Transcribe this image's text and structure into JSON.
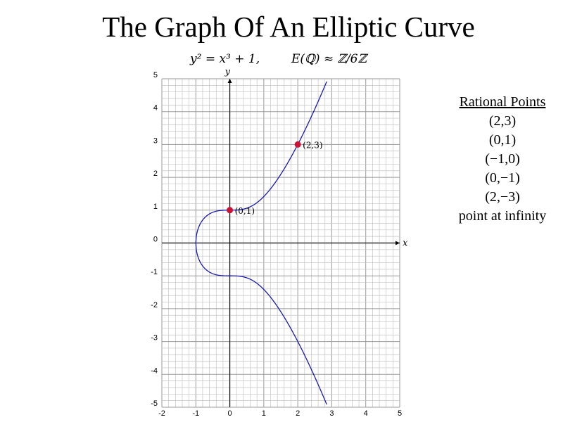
{
  "title": "The Graph Of An Elliptic Curve",
  "formula_left": "y² = x³ + 1,",
  "formula_right": "E(ℚ) ≈ ℤ/6ℤ",
  "panel": {
    "heading": "Rational Points",
    "points": [
      "(2,3)",
      "(0,1)",
      "(−1,0)",
      "(0,−1)",
      "(2,−3)",
      "point at infinity"
    ]
  },
  "chart_data": {
    "type": "line",
    "title": "The Graph Of An Elliptic Curve",
    "equation": "y^2 = x^3 + 1",
    "xlabel": "x",
    "ylabel": "y",
    "xlim": [
      -2,
      5
    ],
    "ylim": [
      -5,
      5
    ],
    "x_ticks": [
      "-2",
      "-1",
      "0",
      "1",
      "2",
      "3",
      "4",
      "5"
    ],
    "y_ticks": [
      "5",
      "4",
      "3",
      "2",
      "1",
      "0",
      "-1",
      "-2",
      "-3",
      "-4",
      "-5"
    ],
    "grid": true,
    "series": [
      {
        "x_start": -1,
        "x_end": 2.85,
        "color": "#1a1ab0"
      }
    ],
    "marked_points": [
      {
        "x": 2,
        "y": 3,
        "label": "(2,3)",
        "color": "#cc1133"
      },
      {
        "x": 0,
        "y": 1,
        "label": "(0,1)",
        "color": "#cc1133"
      }
    ]
  }
}
